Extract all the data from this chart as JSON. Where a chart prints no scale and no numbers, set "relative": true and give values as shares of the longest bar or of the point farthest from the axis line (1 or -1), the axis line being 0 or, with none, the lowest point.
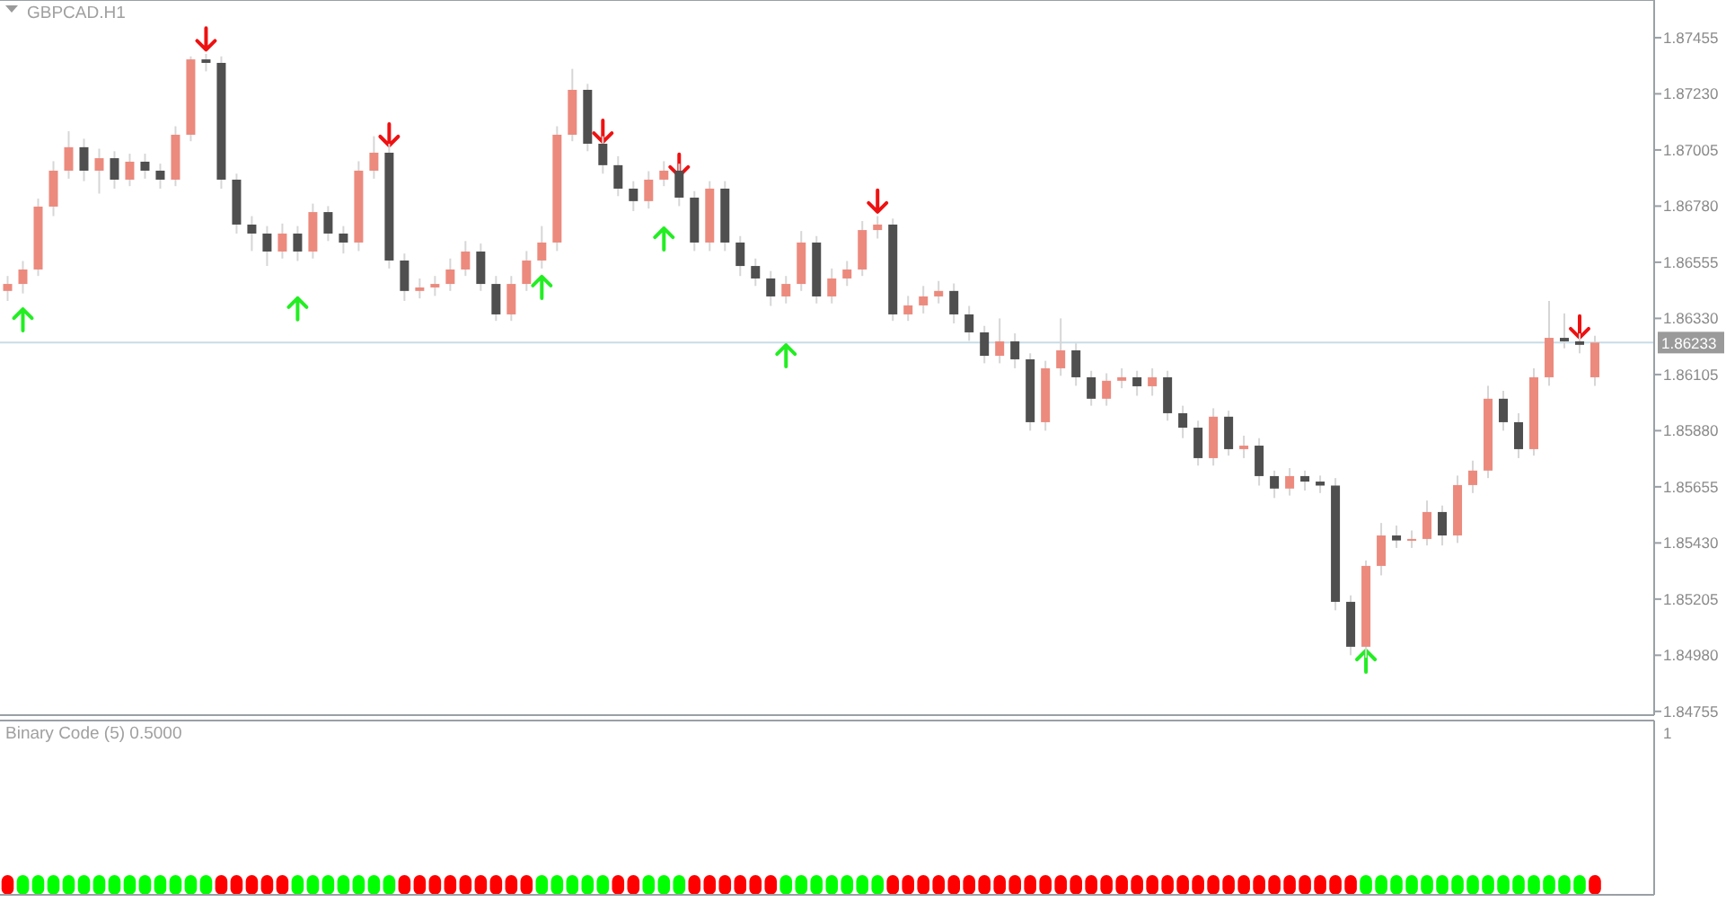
{
  "chart_data": [
    {
      "type": "candlestick",
      "title": "GBPCAD.H1",
      "tick_labels": "y",
      "categories": [
        null,
        null,
        null,
        null,
        null,
        null,
        null,
        null,
        null,
        null,
        null,
        null,
        null,
        null,
        null,
        null,
        null,
        null,
        null,
        null,
        null,
        null,
        null,
        null,
        null,
        null,
        null,
        null,
        null,
        null,
        null,
        null,
        null,
        null,
        null,
        null,
        null,
        null,
        null,
        null,
        null,
        null,
        null,
        null,
        null,
        null,
        null,
        null,
        null,
        null,
        null,
        null,
        null,
        null,
        null,
        null,
        null,
        null,
        null,
        null,
        null,
        null,
        null,
        null,
        null,
        null,
        null,
        null,
        null,
        null,
        null,
        null,
        null,
        null,
        null,
        null,
        null,
        null,
        null,
        null,
        null,
        null,
        null,
        null,
        null,
        null,
        null,
        null,
        null,
        null,
        null,
        null,
        null,
        null,
        null,
        null,
        null,
        null,
        null,
        null,
        null,
        null,
        null,
        null,
        null
      ],
      "ylim": [
        1.8474,
        1.87606
      ],
      "yticks": [
        {
          "value": 1.87455,
          "label": "1.87455"
        },
        {
          "value": 1.8723,
          "label": "1.87230"
        },
        {
          "value": 1.87005,
          "label": "1.87005"
        },
        {
          "value": 1.8678,
          "label": "1.86780"
        },
        {
          "value": 1.86555,
          "label": "1.86555"
        },
        {
          "value": 1.8633,
          "label": "1.86330"
        },
        {
          "value": 1.86105,
          "label": "1.86105"
        },
        {
          "value": 1.8588,
          "label": "1.85880"
        },
        {
          "value": 1.85655,
          "label": "1.85655"
        },
        {
          "value": 1.8543,
          "label": "1.85430"
        },
        {
          "value": 1.85205,
          "label": "1.85205"
        },
        {
          "value": 1.8498,
          "label": "1.84980"
        },
        {
          "value": 1.84755,
          "label": "1.84755"
        }
      ],
      "ref_lines": [
        {
          "axis": "y",
          "value": 1.86233,
          "label": "1.86233",
          "color": "#c6dce6"
        }
      ],
      "ohlc": [
        [
          1.8644,
          1.865,
          1.864,
          1.86468
        ],
        [
          1.86468,
          1.8656,
          1.8643,
          1.86526
        ],
        [
          1.86526,
          1.8681,
          1.865,
          1.86778
        ],
        [
          1.86778,
          1.8696,
          1.8674,
          1.86922
        ],
        [
          1.86922,
          1.8708,
          1.8689,
          1.87016
        ],
        [
          1.87016,
          1.8705,
          1.8688,
          1.86922
        ],
        [
          1.86922,
          1.8701,
          1.8683,
          1.86972
        ],
        [
          1.86972,
          1.87,
          1.8685,
          1.86886
        ],
        [
          1.86886,
          1.8699,
          1.8686,
          1.86958
        ],
        [
          1.86958,
          1.8699,
          1.8689,
          1.86922
        ],
        [
          1.86922,
          1.8695,
          1.8685,
          1.86886
        ],
        [
          1.86886,
          1.871,
          1.8686,
          1.87066
        ],
        [
          1.87066,
          1.8738,
          1.8704,
          1.87368
        ],
        [
          1.87368,
          1.8739,
          1.8732,
          1.87354
        ],
        [
          1.87354,
          1.8738,
          1.8685,
          1.86886
        ],
        [
          1.86886,
          1.8691,
          1.8667,
          1.86706
        ],
        [
          1.86706,
          1.8674,
          1.866,
          1.8667
        ],
        [
          1.8667,
          1.867,
          1.8654,
          1.86598
        ],
        [
          1.86598,
          1.8671,
          1.8657,
          1.8667
        ],
        [
          1.8667,
          1.867,
          1.8656,
          1.86598
        ],
        [
          1.86598,
          1.8679,
          1.8657,
          1.86756
        ],
        [
          1.86756,
          1.8678,
          1.8664,
          1.8667
        ],
        [
          1.8667,
          1.867,
          1.8659,
          1.86634
        ],
        [
          1.86634,
          1.8696,
          1.866,
          1.86922
        ],
        [
          1.86922,
          1.8706,
          1.8689,
          1.86994
        ],
        [
          1.86994,
          1.8703,
          1.8653,
          1.86562
        ],
        [
          1.86562,
          1.8659,
          1.864,
          1.8644
        ],
        [
          1.8644,
          1.8649,
          1.8641,
          1.86454
        ],
        [
          1.86454,
          1.865,
          1.8642,
          1.86468
        ],
        [
          1.86468,
          1.8657,
          1.8644,
          1.86526
        ],
        [
          1.86526,
          1.8664,
          1.865,
          1.86598
        ],
        [
          1.86598,
          1.8663,
          1.8644,
          1.86468
        ],
        [
          1.86468,
          1.865,
          1.8632,
          1.86346
        ],
        [
          1.86346,
          1.865,
          1.8632,
          1.86468
        ],
        [
          1.86468,
          1.866,
          1.8644,
          1.86562
        ],
        [
          1.86562,
          1.867,
          1.8653,
          1.86634
        ],
        [
          1.86634,
          1.871,
          1.866,
          1.87066
        ],
        [
          1.87066,
          1.8733,
          1.8704,
          1.87246
        ],
        [
          1.87246,
          1.8727,
          1.87,
          1.8703
        ],
        [
          1.8703,
          1.8706,
          1.8691,
          1.86944
        ],
        [
          1.86944,
          1.8698,
          1.8682,
          1.8685
        ],
        [
          1.8685,
          1.8688,
          1.8676,
          1.868
        ],
        [
          1.868,
          1.8692,
          1.8677,
          1.86886
        ],
        [
          1.86886,
          1.8696,
          1.8686,
          1.86922
        ],
        [
          1.86922,
          1.8695,
          1.8678,
          1.86814
        ],
        [
          1.86814,
          1.8684,
          1.866,
          1.86634
        ],
        [
          1.86634,
          1.8688,
          1.866,
          1.8685
        ],
        [
          1.8685,
          1.8688,
          1.866,
          1.86634
        ],
        [
          1.86634,
          1.8666,
          1.865,
          1.8654
        ],
        [
          1.8654,
          1.8657,
          1.8646,
          1.8649
        ],
        [
          1.8649,
          1.8652,
          1.8638,
          1.86418
        ],
        [
          1.86418,
          1.865,
          1.8639,
          1.86468
        ],
        [
          1.86468,
          1.8668,
          1.8644,
          1.86634
        ],
        [
          1.86634,
          1.8666,
          1.8639,
          1.86418
        ],
        [
          1.86418,
          1.8653,
          1.8639,
          1.8649
        ],
        [
          1.8649,
          1.8656,
          1.8646,
          1.86526
        ],
        [
          1.86526,
          1.8672,
          1.865,
          1.86684
        ],
        [
          1.86684,
          1.8674,
          1.8665,
          1.86706
        ],
        [
          1.86706,
          1.8673,
          1.8632,
          1.86346
        ],
        [
          1.86346,
          1.8642,
          1.8632,
          1.86382
        ],
        [
          1.86382,
          1.8646,
          1.8635,
          1.86418
        ],
        [
          1.86418,
          1.8648,
          1.8639,
          1.8644
        ],
        [
          1.8644,
          1.8647,
          1.8631,
          1.86346
        ],
        [
          1.86346,
          1.8638,
          1.8624,
          1.86274
        ],
        [
          1.86274,
          1.863,
          1.8615,
          1.8618
        ],
        [
          1.8618,
          1.8633,
          1.8615,
          1.86238
        ],
        [
          1.86238,
          1.8627,
          1.8613,
          1.86166
        ],
        [
          1.86166,
          1.8619,
          1.8588,
          1.85914
        ],
        [
          1.85914,
          1.8616,
          1.8588,
          1.8613
        ],
        [
          1.8613,
          1.8633,
          1.861,
          1.86202
        ],
        [
          1.86202,
          1.8623,
          1.8606,
          1.86094
        ],
        [
          1.86094,
          1.8612,
          1.8598,
          1.86008
        ],
        [
          1.86008,
          1.8611,
          1.8598,
          1.8608
        ],
        [
          1.8608,
          1.8613,
          1.8605,
          1.86094
        ],
        [
          1.86094,
          1.8612,
          1.8602,
          1.86058
        ],
        [
          1.86058,
          1.8613,
          1.8602,
          1.86094
        ],
        [
          1.86094,
          1.8612,
          1.8592,
          1.8595
        ],
        [
          1.8595,
          1.8598,
          1.8585,
          1.85892
        ],
        [
          1.85892,
          1.8592,
          1.8574,
          1.8577
        ],
        [
          1.8577,
          1.8597,
          1.8574,
          1.85936
        ],
        [
          1.85936,
          1.8596,
          1.8578,
          1.85806
        ],
        [
          1.85806,
          1.8586,
          1.8577,
          1.8582
        ],
        [
          1.8582,
          1.8585,
          1.8566,
          1.85698
        ],
        [
          1.85698,
          1.8572,
          1.8561,
          1.85648
        ],
        [
          1.85648,
          1.8573,
          1.8562,
          1.85698
        ],
        [
          1.85698,
          1.8572,
          1.8564,
          1.85676
        ],
        [
          1.85676,
          1.857,
          1.8563,
          1.8566
        ],
        [
          1.8566,
          1.8569,
          1.8516,
          1.85194
        ],
        [
          1.85194,
          1.8522,
          1.8498,
          1.85014
        ],
        [
          1.85014,
          1.8536,
          1.8497,
          1.85338
        ],
        [
          1.85338,
          1.8551,
          1.853,
          1.8546
        ],
        [
          1.8546,
          1.855,
          1.8541,
          1.8544
        ],
        [
          1.8544,
          1.8548,
          1.8541,
          1.85446
        ],
        [
          1.85446,
          1.856,
          1.8542,
          1.85554
        ],
        [
          1.85554,
          1.8558,
          1.8542,
          1.8546
        ],
        [
          1.8546,
          1.857,
          1.8543,
          1.85662
        ],
        [
          1.85662,
          1.8576,
          1.8563,
          1.8572
        ],
        [
          1.8572,
          1.8606,
          1.8569,
          1.86008
        ],
        [
          1.86008,
          1.8604,
          1.8588,
          1.85914
        ],
        [
          1.85914,
          1.8595,
          1.8577,
          1.85806
        ],
        [
          1.85806,
          1.8613,
          1.8578,
          1.86094
        ],
        [
          1.86094,
          1.864,
          1.8606,
          1.86252
        ],
        [
          1.86252,
          1.8635,
          1.8621,
          1.86238
        ],
        [
          1.86238,
          1.8627,
          1.8619,
          1.86224
        ],
        [
          1.86094,
          1.8626,
          1.8606,
          1.86233
        ]
      ],
      "series": [
        {
          "type": "scatter",
          "color": "#22ee22",
          "values": [
            null,
            1.86324,
            null,
            null,
            null,
            null,
            null,
            null,
            null,
            null,
            null,
            null,
            null,
            null,
            null,
            null,
            null,
            null,
            null,
            1.86368,
            null,
            null,
            null,
            null,
            null,
            null,
            null,
            null,
            null,
            null,
            null,
            null,
            null,
            null,
            null,
            1.86454,
            null,
            null,
            null,
            null,
            null,
            null,
            null,
            1.86648,
            null,
            null,
            null,
            null,
            null,
            null,
            null,
            1.8618,
            null,
            null,
            null,
            null,
            null,
            null,
            null,
            null,
            null,
            null,
            null,
            null,
            null,
            null,
            null,
            null,
            null,
            null,
            null,
            null,
            null,
            null,
            null,
            null,
            null,
            null,
            null,
            null,
            null,
            null,
            null,
            null,
            null,
            null,
            null,
            null,
            null,
            1.84956,
            null,
            null,
            null,
            null,
            null,
            null,
            null,
            null,
            null,
            null,
            null,
            null,
            null,
            null,
            null
          ]
        },
        {
          "type": "scatter",
          "color": "#ee1111",
          "values": [
            null,
            null,
            null,
            null,
            null,
            null,
            null,
            null,
            null,
            null,
            null,
            null,
            null,
            1.8745,
            null,
            null,
            null,
            null,
            null,
            null,
            null,
            null,
            null,
            null,
            null,
            1.87066,
            null,
            null,
            null,
            null,
            null,
            null,
            null,
            null,
            null,
            null,
            null,
            null,
            null,
            1.8708,
            null,
            null,
            null,
            null,
            1.86944,
            null,
            null,
            null,
            null,
            null,
            null,
            null,
            null,
            null,
            null,
            null,
            null,
            1.868,
            null,
            null,
            null,
            null,
            null,
            null,
            null,
            null,
            null,
            null,
            null,
            null,
            null,
            null,
            null,
            null,
            null,
            null,
            null,
            null,
            null,
            null,
            null,
            null,
            null,
            null,
            null,
            null,
            null,
            null,
            null,
            null,
            null,
            null,
            null,
            null,
            null,
            null,
            null,
            null,
            null,
            null,
            null,
            null,
            null,
            1.86296,
            null
          ]
        }
      ]
    },
    {
      "type": "bar",
      "title": "Binary Code (5) 0.5000",
      "tick_labels": "y",
      "categories": [
        null,
        null,
        null,
        null,
        null,
        null,
        null,
        null,
        null,
        null,
        null,
        null,
        null,
        null,
        null,
        null,
        null,
        null,
        null,
        null,
        null,
        null,
        null,
        null,
        null,
        null,
        null,
        null,
        null,
        null,
        null,
        null,
        null,
        null,
        null,
        null,
        null,
        null,
        null,
        null,
        null,
        null,
        null,
        null,
        null,
        null,
        null,
        null,
        null,
        null,
        null,
        null,
        null,
        null,
        null,
        null,
        null,
        null,
        null,
        null,
        null,
        null,
        null,
        null,
        null,
        null,
        null,
        null,
        null,
        null,
        null,
        null,
        null,
        null,
        null,
        null,
        null,
        null,
        null,
        null,
        null,
        null,
        null,
        null,
        null,
        null,
        null,
        null,
        null,
        null,
        null,
        null,
        null,
        null,
        null,
        null,
        null,
        null,
        null,
        null,
        null,
        null,
        null,
        null,
        null
      ],
      "relative": true,
      "annotations": [
        "1"
      ],
      "values": [
        1,
        1,
        1,
        1,
        1,
        1,
        1,
        1,
        1,
        1,
        1,
        1,
        1,
        1,
        1,
        1,
        1,
        1,
        1,
        1,
        1,
        1,
        1,
        1,
        1,
        1,
        1,
        1,
        1,
        1,
        1,
        1,
        1,
        1,
        1,
        1,
        1,
        1,
        1,
        1,
        1,
        1,
        1,
        1,
        1,
        1,
        1,
        1,
        1,
        1,
        1,
        1,
        1,
        1,
        1,
        1,
        1,
        1,
        1,
        1,
        1,
        1,
        1,
        1,
        1,
        1,
        1,
        1,
        1,
        1,
        1,
        1,
        1,
        1,
        1,
        1,
        1,
        1,
        1,
        1,
        1,
        1,
        1,
        1,
        1,
        1,
        1,
        1,
        1,
        1,
        1,
        1,
        1,
        1,
        1,
        1,
        1,
        1,
        1,
        1,
        1,
        1,
        1,
        1,
        1
      ],
      "colors": [
        "#ff0000",
        "#00ff00",
        "#00ff00",
        "#00ff00",
        "#00ff00",
        "#00ff00",
        "#00ff00",
        "#00ff00",
        "#00ff00",
        "#00ff00",
        "#00ff00",
        "#00ff00",
        "#00ff00",
        "#00ff00",
        "#ff0000",
        "#ff0000",
        "#ff0000",
        "#ff0000",
        "#ff0000",
        "#00ff00",
        "#00ff00",
        "#00ff00",
        "#00ff00",
        "#00ff00",
        "#00ff00",
        "#00ff00",
        "#ff0000",
        "#ff0000",
        "#ff0000",
        "#ff0000",
        "#ff0000",
        "#ff0000",
        "#ff0000",
        "#ff0000",
        "#ff0000",
        "#00ff00",
        "#00ff00",
        "#00ff00",
        "#00ff00",
        "#00ff00",
        "#ff0000",
        "#ff0000",
        "#00ff00",
        "#00ff00",
        "#00ff00",
        "#ff0000",
        "#ff0000",
        "#ff0000",
        "#ff0000",
        "#ff0000",
        "#ff0000",
        "#00ff00",
        "#00ff00",
        "#00ff00",
        "#00ff00",
        "#00ff00",
        "#00ff00",
        "#00ff00",
        "#ff0000",
        "#ff0000",
        "#ff0000",
        "#ff0000",
        "#ff0000",
        "#ff0000",
        "#ff0000",
        "#ff0000",
        "#ff0000",
        "#ff0000",
        "#ff0000",
        "#ff0000",
        "#ff0000",
        "#ff0000",
        "#ff0000",
        "#ff0000",
        "#ff0000",
        "#ff0000",
        "#ff0000",
        "#ff0000",
        "#ff0000",
        "#ff0000",
        "#ff0000",
        "#ff0000",
        "#ff0000",
        "#ff0000",
        "#ff0000",
        "#ff0000",
        "#ff0000",
        "#ff0000",
        "#ff0000",
        "#00ff00",
        "#00ff00",
        "#00ff00",
        "#00ff00",
        "#00ff00",
        "#00ff00",
        "#00ff00",
        "#00ff00",
        "#00ff00",
        "#00ff00",
        "#00ff00",
        "#00ff00",
        "#00ff00",
        "#00ff00",
        "#00ff00",
        "#ff0000"
      ]
    }
  ]
}
